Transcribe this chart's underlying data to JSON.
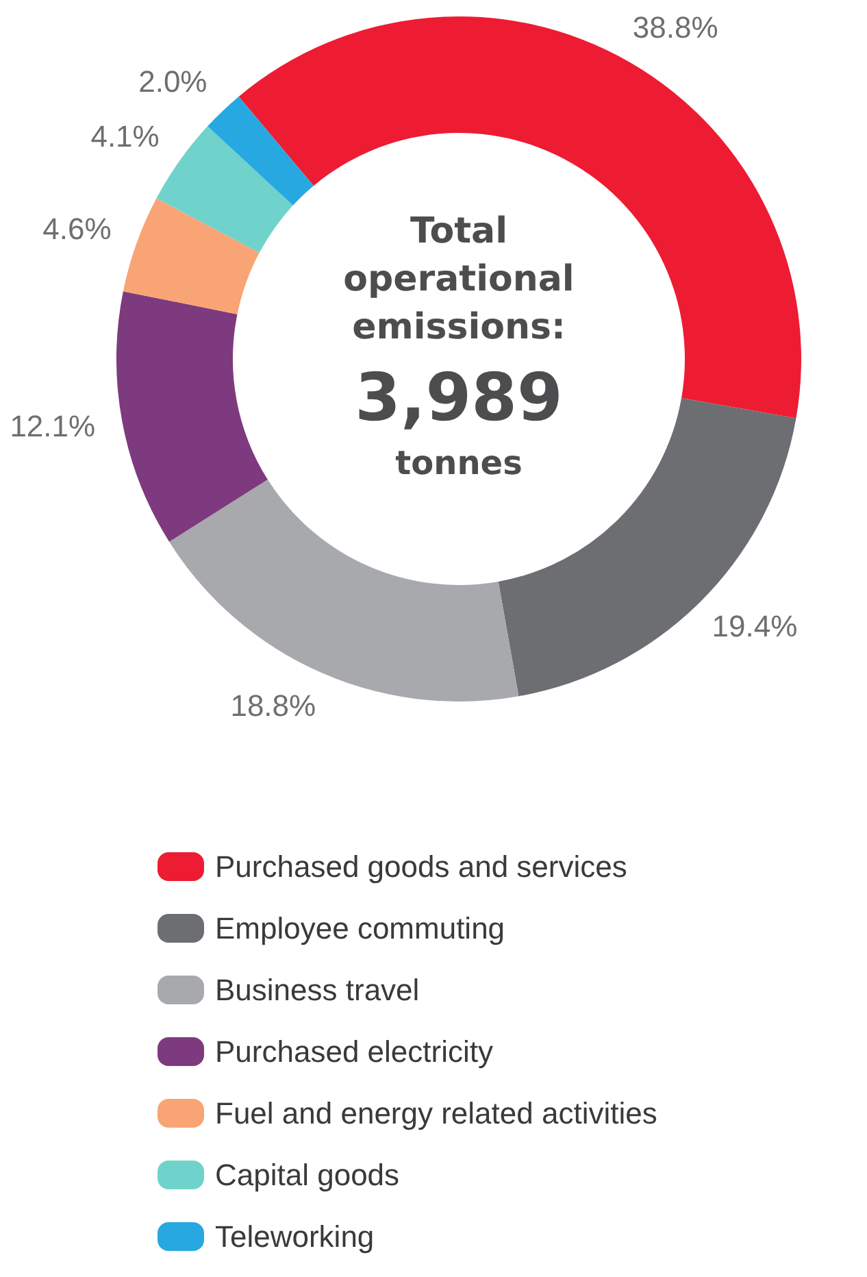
{
  "chart_data": {
    "type": "donut",
    "categories": [
      "Purchased goods and services",
      "Employee commuting",
      "Business travel",
      "Purchased electricity",
      "Fuel and energy related activities",
      "Capital goods",
      "Teleworking"
    ],
    "values": [
      38.8,
      19.4,
      18.8,
      12.1,
      4.6,
      4.1,
      2.0
    ],
    "colors": [
      "#ed1c33",
      "#6d6e71",
      "#a7a9ac",
      "#7e3a7e",
      "#f9a474",
      "#6fd3cb",
      "#27a8e0"
    ],
    "value_labels": [
      "38.8%",
      "19.4%",
      "18.8%",
      "12.1%",
      "4.6%",
      "4.1%",
      "2.0%"
    ],
    "annotations": [
      "Total operational emissions:",
      "3,989",
      "tonnes"
    ],
    "legend": "bottom"
  }
}
